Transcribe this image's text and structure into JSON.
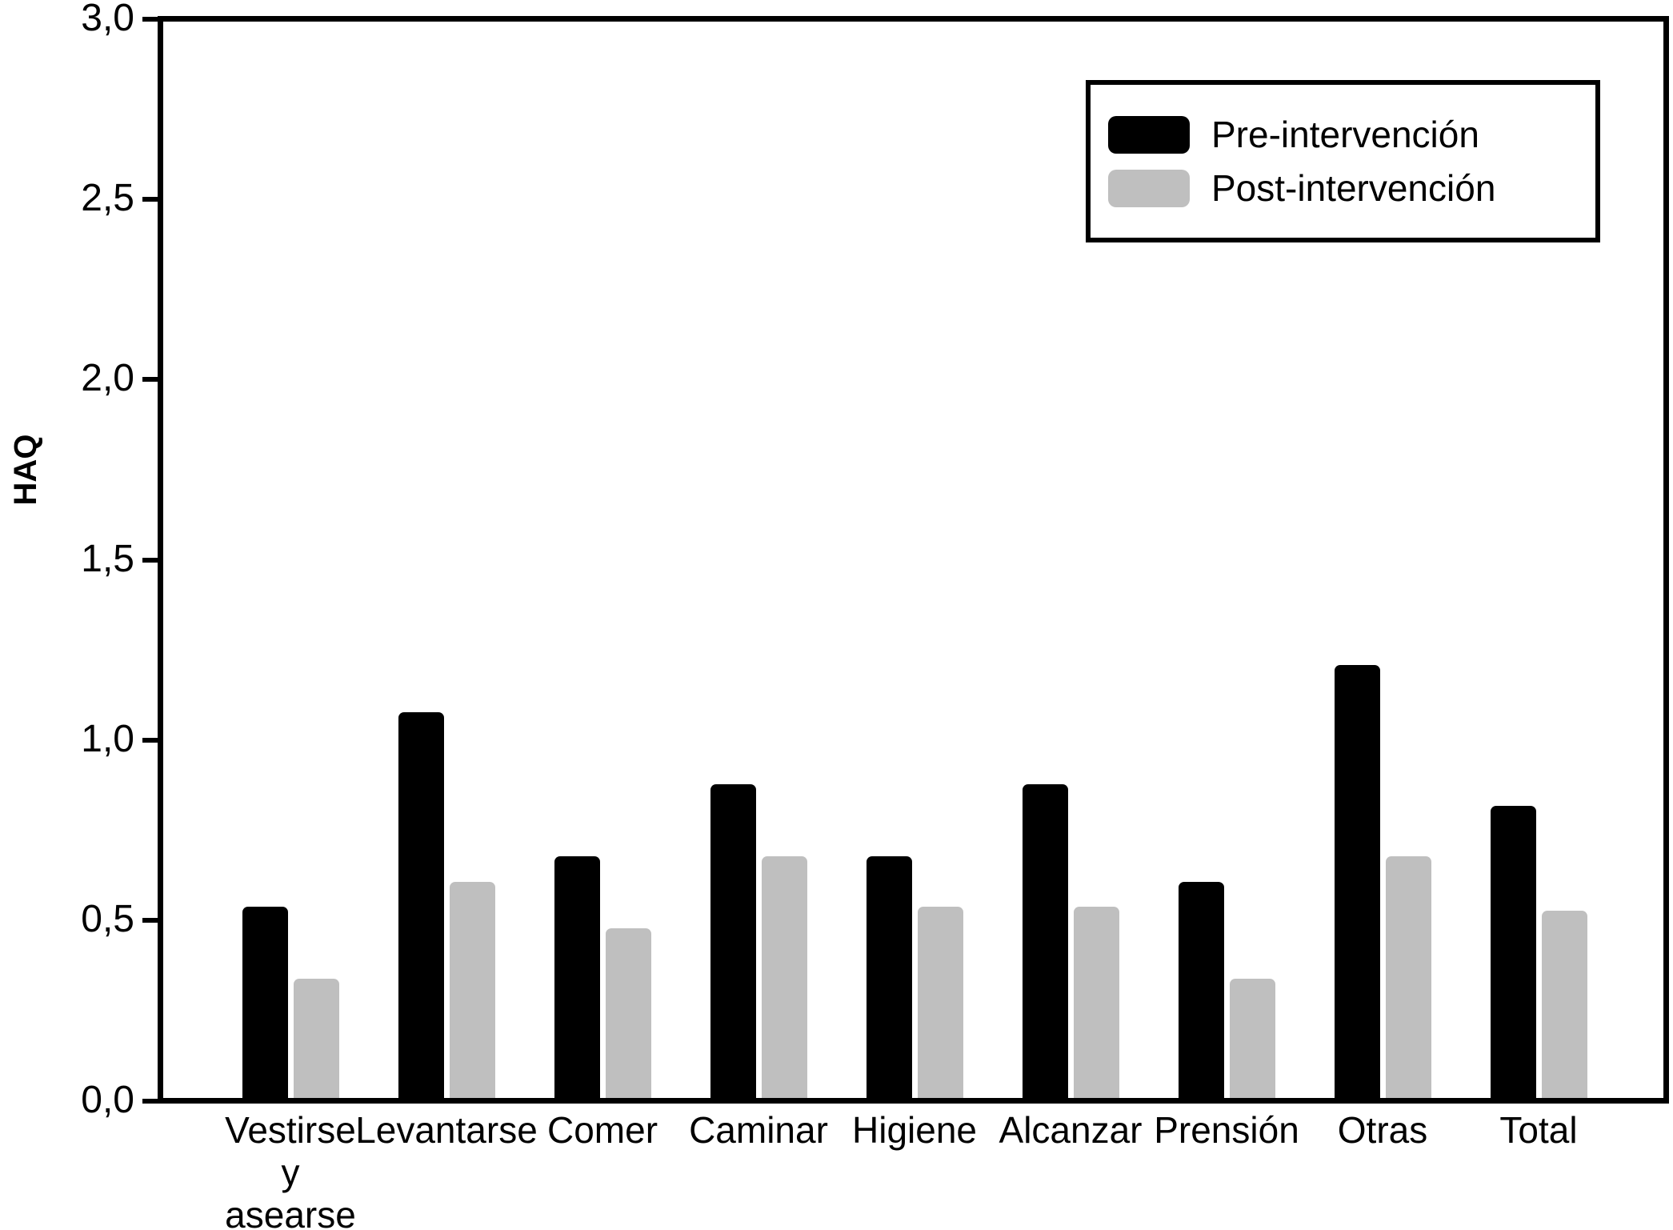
{
  "chart_data": {
    "type": "bar",
    "title": "",
    "xlabel": "",
    "ylabel": "HAQ",
    "categories": [
      "Vestirse\ny\nasearse",
      "Levantarse",
      "Comer",
      "Caminar",
      "Higiene",
      "Alcanzar",
      "Prensión",
      "Otras",
      "Total"
    ],
    "series": [
      {
        "name": "Pre-intervención",
        "color": "#000000",
        "values": [
          0.53,
          1.07,
          0.67,
          0.87,
          0.67,
          0.87,
          0.6,
          1.2,
          0.81
        ]
      },
      {
        "name": "Post-intervención",
        "color": "#bfbfbf",
        "values": [
          0.33,
          0.6,
          0.47,
          0.67,
          0.53,
          0.53,
          0.33,
          0.67,
          0.52
        ]
      }
    ],
    "ylim": [
      0,
      3.0
    ],
    "yticks": [
      0.0,
      0.5,
      1.0,
      1.5,
      2.0,
      2.5,
      3.0
    ],
    "ytick_labels": [
      "0,0",
      "0,5",
      "1,0",
      "1,5",
      "2,0",
      "2,5",
      "3,0"
    ],
    "grid": false,
    "legend_position": "top-right"
  }
}
